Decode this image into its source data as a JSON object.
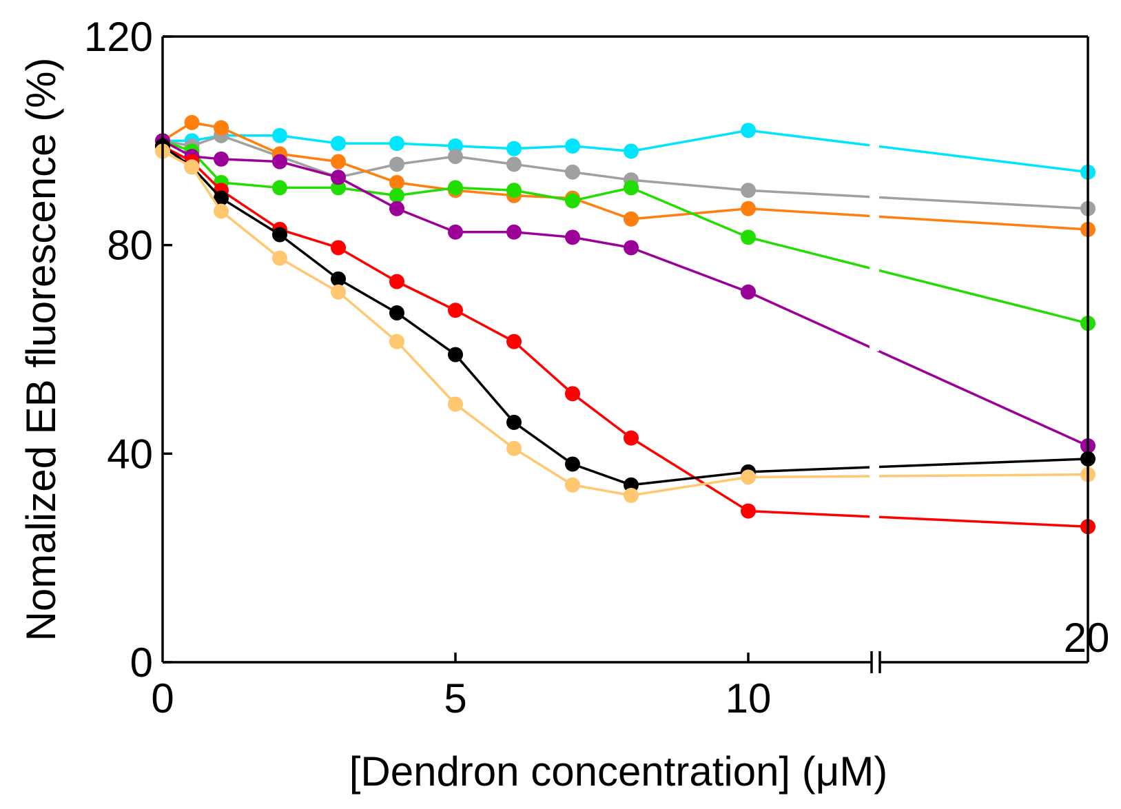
{
  "chart_data": {
    "type": "line",
    "title": "",
    "xlabel": "[Dendron concentration] (μM)",
    "ylabel": "Nomalized EB fluorescence (%)",
    "xlim": [
      0,
      20
    ],
    "ylim": [
      0,
      120
    ],
    "x_axis_break": true,
    "x_ticks": [
      0,
      5,
      10,
      20
    ],
    "x_tick_labels": [
      "0",
      "5",
      "10",
      "20"
    ],
    "y_ticks": [
      0,
      40,
      80,
      120
    ],
    "y_tick_labels": [
      "0",
      "40",
      "80",
      "120"
    ],
    "grid": false,
    "legend": "none",
    "x": [
      0,
      0.5,
      1,
      2,
      3,
      4,
      5,
      6,
      7,
      8,
      10,
      20
    ],
    "series": [
      {
        "color": "#00e5ff",
        "values": [
          100,
          100,
          101,
          101,
          99.5,
          99.5,
          99,
          98.5,
          99,
          98,
          102,
          94
        ]
      },
      {
        "color": "#a0a0a0",
        "values": [
          100,
          99,
          101,
          97,
          93,
          95.5,
          97,
          95.5,
          94,
          92.5,
          90.5,
          87
        ]
      },
      {
        "color": "#ff7f0e",
        "values": [
          100,
          103.5,
          102.5,
          97.5,
          96,
          92,
          90.5,
          89.5,
          89,
          85,
          87,
          83
        ]
      },
      {
        "color": "#22dd00",
        "values": [
          100,
          98,
          92,
          91,
          91,
          89.5,
          91,
          90.5,
          88.5,
          91,
          81.5,
          65
        ]
      },
      {
        "color": "#9b0099",
        "values": [
          100,
          97,
          96.5,
          96,
          93,
          87,
          82.5,
          82.5,
          81.5,
          79.5,
          71,
          41.5
        ]
      },
      {
        "color": "#ff0000",
        "values": [
          99,
          96,
          90.5,
          83,
          79.5,
          73,
          67.5,
          61.5,
          51.5,
          43,
          29,
          26
        ]
      },
      {
        "color": "#000000",
        "values": [
          99,
          95,
          89,
          82,
          73.5,
          67,
          59,
          46,
          38,
          34,
          36.5,
          39
        ]
      },
      {
        "color": "#ffc870",
        "values": [
          98,
          95,
          86.5,
          77.5,
          71,
          61.5,
          49.5,
          41,
          34,
          32,
          35.5,
          36
        ]
      }
    ]
  }
}
